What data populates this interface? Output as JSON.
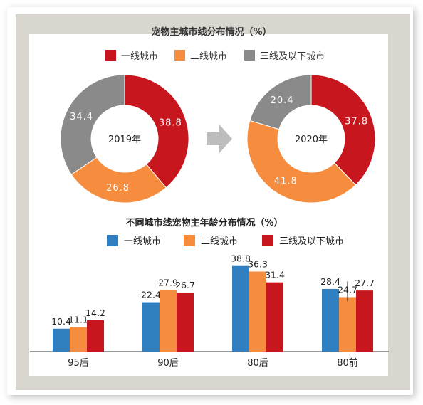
{
  "colors": {
    "tier1": "#c8161e",
    "tier2": "#f68c3e",
    "tier3": "#8a8a8a",
    "bar_tier1": "#2f7fc1",
    "bar_tier2": "#f68c3e",
    "bar_tier3": "#c8161e",
    "arrow": "#bdbdbd"
  },
  "chart_data": [
    {
      "type": "pie",
      "title": "宠物主城市线分布情况（%）",
      "legend": [
        "一线城市",
        "二线城市",
        "三线及以下城市"
      ],
      "legend_position": "top",
      "center_label": "2019年",
      "slices": [
        {
          "name": "一线城市",
          "value": 38.8,
          "label": "38.8"
        },
        {
          "name": "二线城市",
          "value": 26.8,
          "label": "26.8"
        },
        {
          "name": "三线及以下城市",
          "value": 34.4,
          "label": "34.4"
        }
      ]
    },
    {
      "type": "pie",
      "center_label": "2020年",
      "slices": [
        {
          "name": "一线城市",
          "value": 37.8,
          "label": "37.8"
        },
        {
          "name": "二线城市",
          "value": 41.8,
          "label": "41.8"
        },
        {
          "name": "三线及以下城市",
          "value": 20.4,
          "label": "20.4"
        }
      ]
    },
    {
      "type": "bar",
      "title": "不同城市线宠物主年龄分布情况（%）",
      "legend_position": "top",
      "categories": [
        "95后",
        "90后",
        "80后",
        "80前"
      ],
      "series": [
        {
          "name": "一线城市",
          "values": [
            10.4,
            22.4,
            38.8,
            28.4
          ],
          "labels": [
            "10.4",
            "22.4",
            "38.8",
            "28.4"
          ]
        },
        {
          "name": "二线城市",
          "values": [
            11.1,
            27.9,
            36.3,
            24.7
          ],
          "labels": [
            "11.1",
            "27.9",
            "36.3",
            "24.7"
          ]
        },
        {
          "name": "三线及以下城市",
          "values": [
            14.2,
            26.7,
            31.4,
            27.7
          ],
          "labels": [
            "14.2",
            "26.7",
            "31.4",
            "27.7"
          ]
        }
      ],
      "ylim": [
        0,
        40
      ],
      "grid": false
    }
  ]
}
